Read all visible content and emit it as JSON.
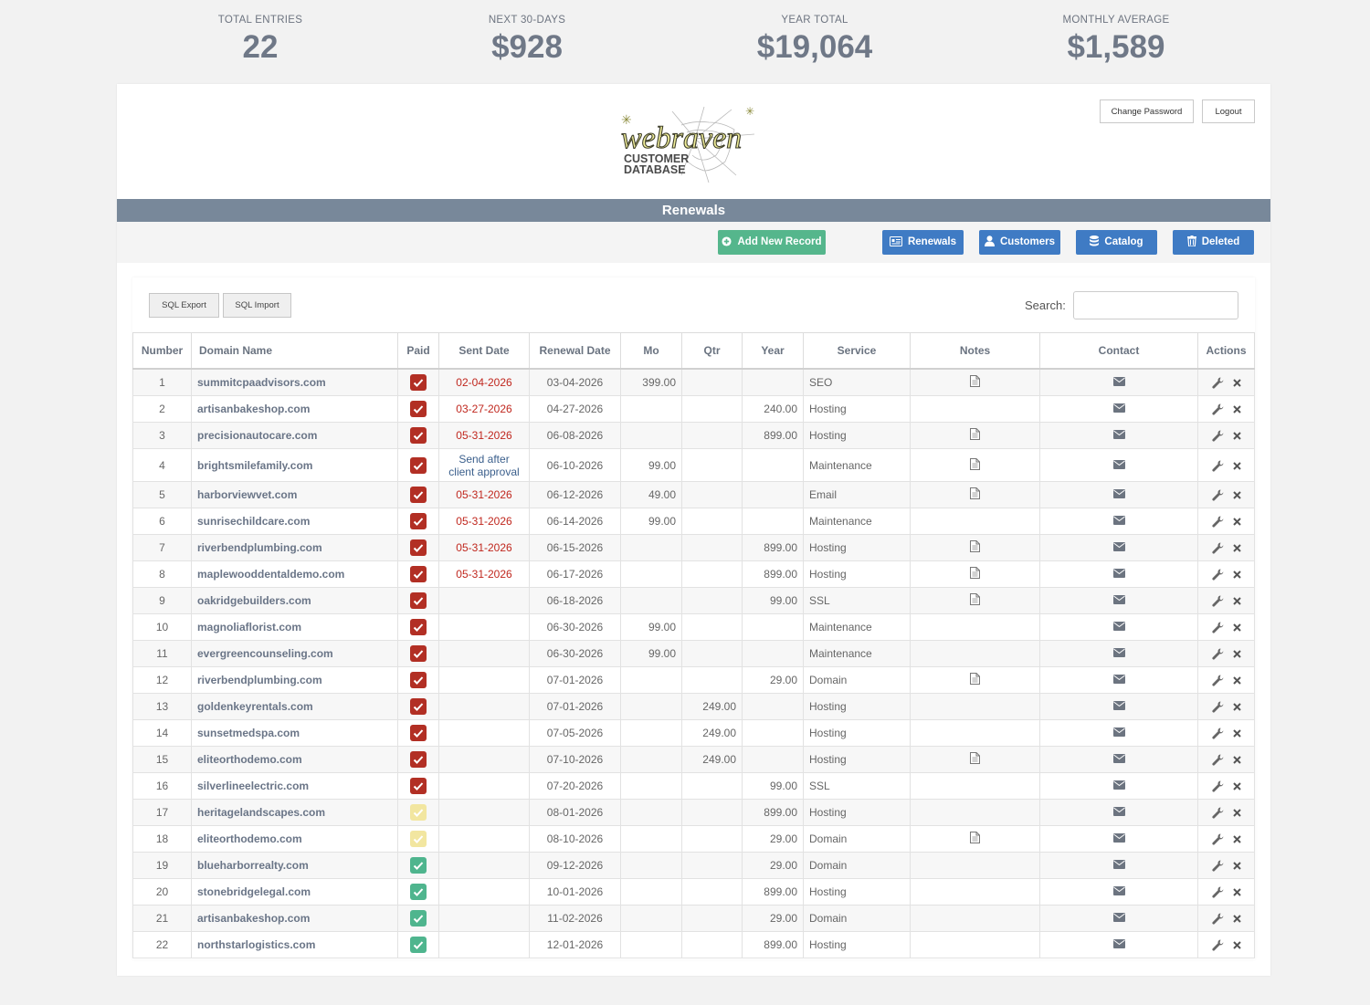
{
  "stats": [
    {
      "label": "TOTAL ENTRIES",
      "value": "22"
    },
    {
      "label": "NEXT 30-DAYS",
      "value": "$928"
    },
    {
      "label": "YEAR TOTAL",
      "value": "$19,064"
    },
    {
      "label": "MONTHLY AVERAGE",
      "value": "$1,589"
    }
  ],
  "logo": {
    "brand": "webraven",
    "line1": "CUSTOMER",
    "line2": "DATABASE"
  },
  "header": {
    "change_password": "Change Password",
    "logout": "Logout"
  },
  "title": "Renewals",
  "toolbar": {
    "add": "Add New Record",
    "renewals": "Renewals",
    "customers": "Customers",
    "catalog": "Catalog",
    "deleted": "Deleted"
  },
  "sql": {
    "export": "SQL Export",
    "import": "SQL Import"
  },
  "search": {
    "label": "Search:",
    "value": ""
  },
  "colors": {
    "paid_red": "#b22f24",
    "paid_yellow": "#f2e6a0",
    "paid_green": "#4fb58e",
    "title_bar": "#78889a",
    "button_blue": "#3f7bc4",
    "button_green": "#55b68c"
  },
  "columns": [
    "Number",
    "Domain Name",
    "Paid",
    "Sent Date",
    "Renewal Date",
    "Mo",
    "Qtr",
    "Year",
    "Service",
    "Notes",
    "Contact",
    "Actions"
  ],
  "rows": [
    {
      "num": "1",
      "domain": "summitcpaadvisors.com",
      "paid": "red",
      "sent": "02-04-2026",
      "renewal": "03-04-2026",
      "mo": "399.00",
      "qtr": "",
      "year": "",
      "service": "SEO",
      "notes": true
    },
    {
      "num": "2",
      "domain": "artisanbakeshop.com",
      "paid": "red",
      "sent": "03-27-2026",
      "renewal": "04-27-2026",
      "mo": "",
      "qtr": "",
      "year": "240.00",
      "service": "Hosting",
      "notes": false
    },
    {
      "num": "3",
      "domain": "precisionautocare.com",
      "paid": "red",
      "sent": "05-31-2026",
      "renewal": "06-08-2026",
      "mo": "",
      "qtr": "",
      "year": "899.00",
      "service": "Hosting",
      "notes": true
    },
    {
      "num": "4",
      "domain": "brightsmilefamily.com",
      "paid": "red",
      "sent": "Send after client approval",
      "sent_blue": true,
      "renewal": "06-10-2026",
      "mo": "99.00",
      "qtr": "",
      "year": "",
      "service": "Maintenance",
      "notes": true
    },
    {
      "num": "5",
      "domain": "harborviewvet.com",
      "paid": "red",
      "sent": "05-31-2026",
      "renewal": "06-12-2026",
      "mo": "49.00",
      "qtr": "",
      "year": "",
      "service": "Email",
      "notes": true
    },
    {
      "num": "6",
      "domain": "sunrisechildcare.com",
      "paid": "red",
      "sent": "05-31-2026",
      "renewal": "06-14-2026",
      "mo": "99.00",
      "qtr": "",
      "year": "",
      "service": "Maintenance",
      "notes": false
    },
    {
      "num": "7",
      "domain": "riverbendplumbing.com",
      "paid": "red",
      "sent": "05-31-2026",
      "renewal": "06-15-2026",
      "mo": "",
      "qtr": "",
      "year": "899.00",
      "service": "Hosting",
      "notes": true
    },
    {
      "num": "8",
      "domain": "maplewooddentaldemo.com",
      "paid": "red",
      "sent": "05-31-2026",
      "renewal": "06-17-2026",
      "mo": "",
      "qtr": "",
      "year": "899.00",
      "service": "Hosting",
      "notes": true
    },
    {
      "num": "9",
      "domain": "oakridgebuilders.com",
      "paid": "red",
      "sent": "",
      "renewal": "06-18-2026",
      "mo": "",
      "qtr": "",
      "year": "99.00",
      "service": "SSL",
      "notes": true
    },
    {
      "num": "10",
      "domain": "magnoliaflorist.com",
      "paid": "red",
      "sent": "",
      "renewal": "06-30-2026",
      "mo": "99.00",
      "qtr": "",
      "year": "",
      "service": "Maintenance",
      "notes": false
    },
    {
      "num": "11",
      "domain": "evergreencounseling.com",
      "paid": "red",
      "sent": "",
      "renewal": "06-30-2026",
      "mo": "99.00",
      "qtr": "",
      "year": "",
      "service": "Maintenance",
      "notes": false
    },
    {
      "num": "12",
      "domain": "riverbendplumbing.com",
      "paid": "red",
      "sent": "",
      "renewal": "07-01-2026",
      "mo": "",
      "qtr": "",
      "year": "29.00",
      "service": "Domain",
      "notes": true
    },
    {
      "num": "13",
      "domain": "goldenkeyrentals.com",
      "paid": "red",
      "sent": "",
      "renewal": "07-01-2026",
      "mo": "",
      "qtr": "249.00",
      "year": "",
      "service": "Hosting",
      "notes": false
    },
    {
      "num": "14",
      "domain": "sunsetmedspa.com",
      "paid": "red",
      "sent": "",
      "renewal": "07-05-2026",
      "mo": "",
      "qtr": "249.00",
      "year": "",
      "service": "Hosting",
      "notes": false
    },
    {
      "num": "15",
      "domain": "eliteorthodemo.com",
      "paid": "red",
      "sent": "",
      "renewal": "07-10-2026",
      "mo": "",
      "qtr": "249.00",
      "year": "",
      "service": "Hosting",
      "notes": true
    },
    {
      "num": "16",
      "domain": "silverlineelectric.com",
      "paid": "red",
      "sent": "",
      "renewal": "07-20-2026",
      "mo": "",
      "qtr": "",
      "year": "99.00",
      "service": "SSL",
      "notes": false
    },
    {
      "num": "17",
      "domain": "heritagelandscapes.com",
      "paid": "yellow",
      "sent": "",
      "renewal": "08-01-2026",
      "mo": "",
      "qtr": "",
      "year": "899.00",
      "service": "Hosting",
      "notes": false
    },
    {
      "num": "18",
      "domain": "eliteorthodemo.com",
      "paid": "yellow",
      "sent": "",
      "renewal": "08-10-2026",
      "mo": "",
      "qtr": "",
      "year": "29.00",
      "service": "Domain",
      "notes": true
    },
    {
      "num": "19",
      "domain": "blueharborrealty.com",
      "paid": "green",
      "sent": "",
      "renewal": "09-12-2026",
      "mo": "",
      "qtr": "",
      "year": "29.00",
      "service": "Domain",
      "notes": false
    },
    {
      "num": "20",
      "domain": "stonebridgelegal.com",
      "paid": "green",
      "sent": "",
      "renewal": "10-01-2026",
      "mo": "",
      "qtr": "",
      "year": "899.00",
      "service": "Hosting",
      "notes": false
    },
    {
      "num": "21",
      "domain": "artisanbakeshop.com",
      "paid": "green",
      "sent": "",
      "renewal": "11-02-2026",
      "mo": "",
      "qtr": "",
      "year": "29.00",
      "service": "Domain",
      "notes": false
    },
    {
      "num": "22",
      "domain": "northstarlogistics.com",
      "paid": "green",
      "sent": "",
      "renewal": "12-01-2026",
      "mo": "",
      "qtr": "",
      "year": "899.00",
      "service": "Hosting",
      "notes": false
    }
  ]
}
